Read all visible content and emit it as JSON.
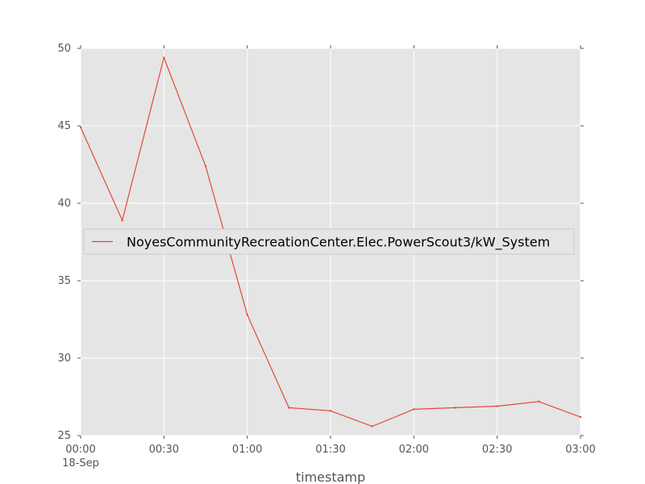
{
  "chart_data": {
    "type": "line",
    "title": "",
    "xlabel": "timestamp",
    "ylabel": "",
    "x_ticks": [
      "00:00",
      "00:30",
      "01:00",
      "01:30",
      "02:00",
      "02:30",
      "03:00"
    ],
    "x_date_label": "18-Sep",
    "x": [
      "00:00",
      "00:15",
      "00:30",
      "00:45",
      "01:00",
      "01:15",
      "01:30",
      "01:45",
      "02:00",
      "02:15",
      "02:30",
      "02:45",
      "03:00"
    ],
    "xlim": [
      "00:00",
      "03:00"
    ],
    "ylim": [
      25,
      50
    ],
    "y_ticks": [
      25,
      30,
      35,
      40,
      45,
      50
    ],
    "grid": true,
    "legend_position": "center-left",
    "series": [
      {
        "name": "NoyesCommunityRecreationCenter.Elec.PowerScout3/kW_System",
        "color": "#e24a33",
        "values": [
          44.9,
          38.9,
          49.4,
          42.4,
          32.8,
          26.8,
          26.6,
          25.6,
          26.7,
          26.8,
          26.9,
          27.2,
          26.2
        ]
      }
    ],
    "colors": {
      "plot_background": "#e5e5e5",
      "grid": "#ffffff",
      "tick_label": "#555555"
    }
  }
}
